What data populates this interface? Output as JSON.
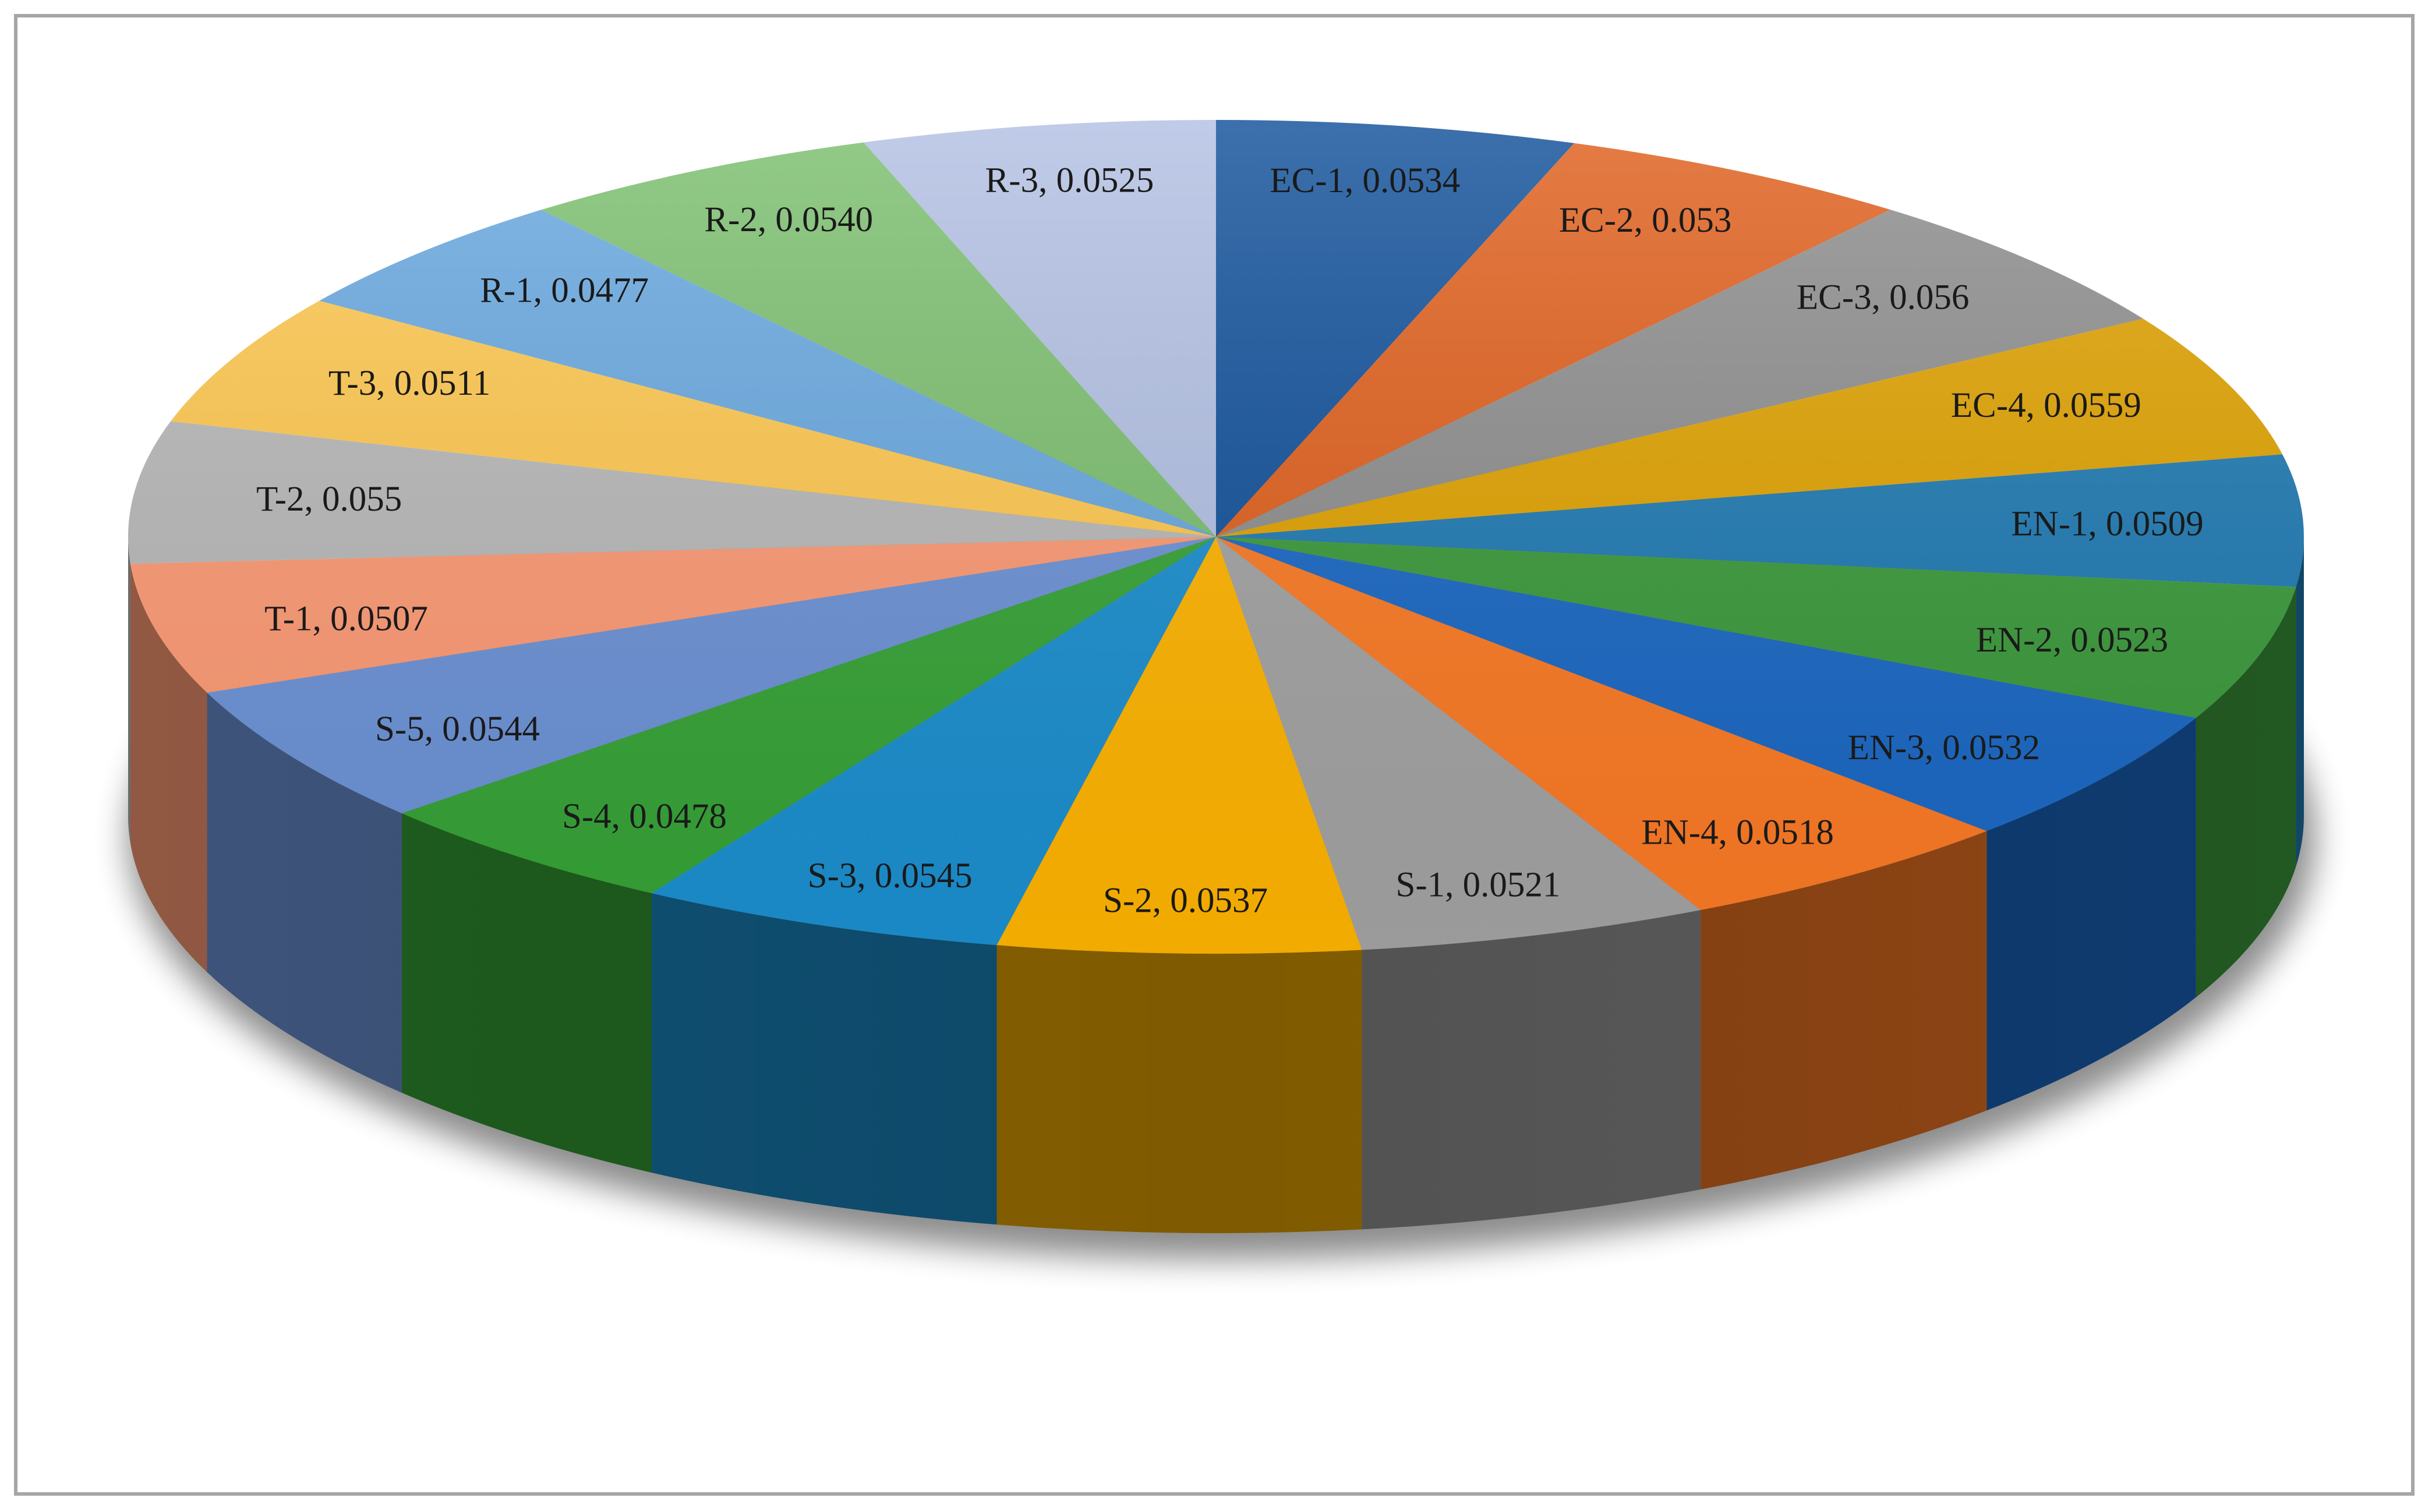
{
  "chart_data": {
    "type": "pie",
    "style": "3d",
    "start": "top-center",
    "direction": "clockwise",
    "slices": [
      {
        "name": "EC-1",
        "value": 0.0534,
        "label": "EC-1, 0.0534",
        "color": "#12519a"
      },
      {
        "name": "EC-2",
        "value": 0.053,
        "label": "EC-2, 0.053",
        "color": "#e0601d"
      },
      {
        "name": "EC-3",
        "value": 0.056,
        "label": "EC-3, 0.056",
        "color": "#8e8e8e"
      },
      {
        "name": "EC-4",
        "value": 0.0559,
        "label": "EC-4, 0.0559",
        "color": "#e0a200"
      },
      {
        "name": "EN-1",
        "value": 0.0509,
        "label": "EN-1, 0.0509",
        "color": "#1f7ab3"
      },
      {
        "name": "EN-2",
        "value": 0.0523,
        "label": "EN-2, 0.0523",
        "color": "#3b9a3b"
      },
      {
        "name": "EN-3",
        "value": 0.0532,
        "label": "EN-3, 0.0532",
        "color": "#1a68c4"
      },
      {
        "name": "EN-4",
        "value": 0.0518,
        "label": "EN-4, 0.0518",
        "color": "#fb7a24"
      },
      {
        "name": "S-1",
        "value": 0.0521,
        "label": "S-1, 0.0521",
        "color": "#a3a3a3"
      },
      {
        "name": "S-2",
        "value": 0.0537,
        "label": "S-2, 0.0537",
        "color": "#ffb400"
      },
      {
        "name": "S-3",
        "value": 0.0545,
        "label": "S-3, 0.0545",
        "color": "#1b8fcf"
      },
      {
        "name": "S-4",
        "value": 0.0478,
        "label": "S-4, 0.0478",
        "color": "#36a336"
      },
      {
        "name": "S-5",
        "value": 0.0544,
        "label": "S-5, 0.0544",
        "color": "#6c92d6"
      },
      {
        "name": "T-1",
        "value": 0.0507,
        "label": "T-1, 0.0507",
        "color": "#fd9a74"
      },
      {
        "name": "T-2",
        "value": 0.055,
        "label": "T-2, 0.055",
        "color": "#b8b8b8"
      },
      {
        "name": "T-3",
        "value": 0.0511,
        "label": "T-3, 0.0511",
        "color": "#ffc84f"
      },
      {
        "name": "R-1",
        "value": 0.0477,
        "label": "R-1, 0.0477",
        "color": "#68a8e0"
      },
      {
        "name": "R-2",
        "value": 0.054,
        "label": "R-2, 0.0540",
        "color": "#7cbf6f"
      },
      {
        "name": "R-3",
        "value": 0.0525,
        "label": "R-3, 0.0525",
        "color": "#b2c0e3"
      }
    ]
  }
}
